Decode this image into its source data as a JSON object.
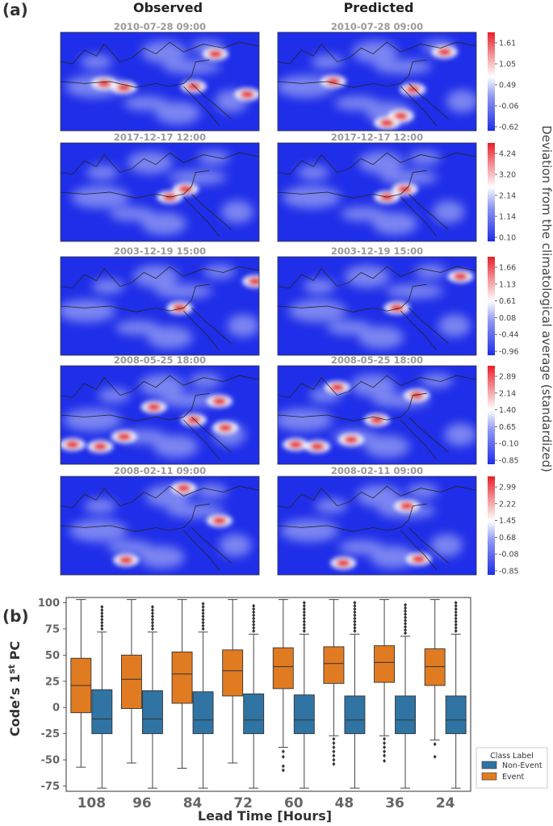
{
  "panel_a": {
    "label": "(a)",
    "col_observed": "Observed",
    "col_predicted": "Predicted",
    "colorbar_label": "Deviation from the climatological average (standardized)",
    "colorscale": {
      "low": "#1f2ee8",
      "mid": "#ffffff",
      "high": "#e8202a"
    },
    "rows": [
      {
        "time": "2010-07-28  09:00",
        "ticks": [
          "1.61",
          "1.05",
          "0.49",
          "-0.06",
          "-0.62"
        ]
      },
      {
        "time": "2017-12-17  12:00",
        "ticks": [
          "4.24",
          "3.20",
          "2.14",
          "1.14",
          "0.10"
        ]
      },
      {
        "time": "2003-12-19  15:00",
        "ticks": [
          "1.66",
          "1.13",
          "0.61",
          "0.08",
          "-0.44",
          "-0.96"
        ]
      },
      {
        "time": "2008-05-25  18:00",
        "ticks": [
          "2.89",
          "2.14",
          "1.40",
          "0.65",
          "-0.10",
          "-0.85"
        ]
      },
      {
        "time": "2008-02-11  09:00",
        "ticks": [
          "2.99",
          "2.22",
          "1.45",
          "0.68",
          "-0.08",
          "-0.85"
        ]
      }
    ]
  },
  "chart_data": {
    "type": "box",
    "panel_label": "(b)",
    "xlabel": "Lead Time [Hours]",
    "ylabel": "Code's 1st PC",
    "ylabel_main": "Code’s 1",
    "ylabel_sup": "st",
    "ylabel_tail": " PC",
    "ylim": [
      -80,
      105
    ],
    "yticks": [
      -75,
      -50,
      -25,
      0,
      25,
      50,
      75,
      100
    ],
    "categories": [
      "108",
      "96",
      "84",
      "72",
      "60",
      "48",
      "36",
      "24"
    ],
    "legend": {
      "title": "Class Label",
      "position": "lower-right"
    },
    "series": [
      {
        "name": "Event",
        "color": "#e07b22",
        "boxes": [
          {
            "whislo": -57,
            "q1": -5,
            "med": 21,
            "q3": 47,
            "whishi": 103,
            "outliers": []
          },
          {
            "whislo": -53,
            "q1": -1,
            "med": 27,
            "q3": 50,
            "whishi": 103,
            "outliers": []
          },
          {
            "whislo": -58,
            "q1": 4,
            "med": 32,
            "q3": 53,
            "whishi": 103,
            "outliers": []
          },
          {
            "whislo": -53,
            "q1": 11,
            "med": 35,
            "q3": 55,
            "whishi": 103,
            "outliers": []
          },
          {
            "whislo": -38,
            "q1": 18,
            "med": 39,
            "q3": 57,
            "whishi": 103,
            "outliers": [
              -42,
              -47,
              -56,
              -60
            ]
          },
          {
            "whislo": -27,
            "q1": 23,
            "med": 42,
            "q3": 58,
            "whishi": 103,
            "outliers": [
              -30,
              -34,
              -38,
              -42,
              -46,
              -50,
              -54
            ]
          },
          {
            "whislo": -27,
            "q1": 24,
            "med": 43,
            "q3": 59,
            "whishi": 103,
            "outliers": [
              -30,
              -34,
              -38,
              -42,
              -46,
              -51
            ]
          },
          {
            "whislo": -31,
            "q1": 21,
            "med": 39,
            "q3": 56,
            "whishi": 103,
            "outliers": [
              -35,
              -47
            ]
          }
        ]
      },
      {
        "name": "Non-Event",
        "color": "#2f74a3",
        "boxes": [
          {
            "whislo": -77,
            "q1": -25,
            "med": -11,
            "q3": 17,
            "whishi": 72,
            "outliers": [
              75,
              78,
              81,
              84,
              87,
              90,
              93,
              96
            ]
          },
          {
            "whislo": -77,
            "q1": -25,
            "med": -11,
            "q3": 16,
            "whishi": 72,
            "outliers": [
              75,
              78,
              81,
              84,
              87,
              90,
              93,
              96
            ]
          },
          {
            "whislo": -77,
            "q1": -25,
            "med": -12,
            "q3": 15,
            "whishi": 72,
            "outliers": [
              75,
              78,
              81,
              84,
              87,
              90,
              93,
              96,
              99
            ]
          },
          {
            "whislo": -77,
            "q1": -25,
            "med": -12,
            "q3": 13,
            "whishi": 70,
            "outliers": [
              73,
              76,
              79,
              82,
              85,
              88,
              91,
              94,
              97
            ]
          },
          {
            "whislo": -77,
            "q1": -25,
            "med": -12,
            "q3": 12,
            "whishi": 70,
            "outliers": [
              73,
              76,
              79,
              82,
              85,
              88,
              91,
              94,
              97,
              100
            ]
          },
          {
            "whislo": -77,
            "q1": -25,
            "med": -12,
            "q3": 11,
            "whishi": 70,
            "outliers": [
              73,
              76,
              79,
              82,
              85,
              88,
              91,
              94,
              97,
              100
            ]
          },
          {
            "whislo": -77,
            "q1": -25,
            "med": -12,
            "q3": 11,
            "whishi": 68,
            "outliers": [
              71,
              74,
              77,
              80,
              83,
              86,
              89,
              92,
              95,
              98
            ]
          },
          {
            "whislo": -77,
            "q1": -25,
            "med": -12,
            "q3": 11,
            "whishi": 70,
            "outliers": [
              73,
              76,
              79,
              82,
              85,
              88,
              91,
              94,
              97,
              100
            ]
          }
        ]
      }
    ]
  }
}
